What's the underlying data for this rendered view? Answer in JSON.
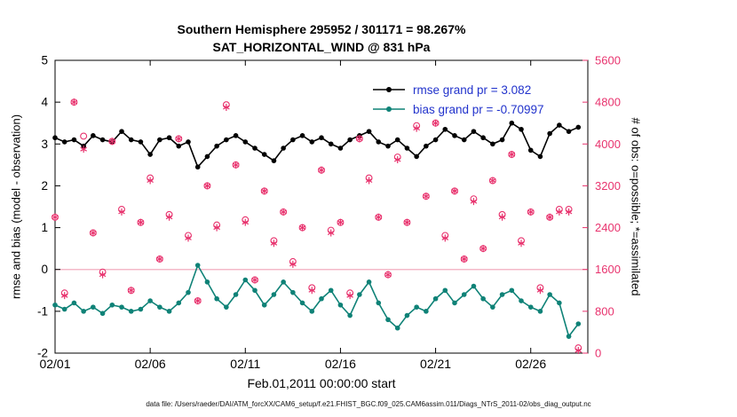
{
  "title": {
    "line1": "Southern Hemisphere 295952 / 301171 = 98.267%",
    "line2": "SAT_HORIZONTAL_WIND @ 831 hPa"
  },
  "axes": {
    "left_label": "rmse and bias (model - observation)",
    "right_label": "# of obs: o=possible; *=assimilated",
    "x_label": "Feb.01,2011 00:00:00 start"
  },
  "caption": "data file: /Users/raeder/DAI/ATM_forcXX/CAM6_setup/f.e21.FHIST_BGC.f09_025.CAM6assim.011/Diags_NTrS_2011-02/obs_diag_output.nc",
  "colors": {
    "rmse": "#000000",
    "bias": "#0f8277",
    "obs": "#e8336e",
    "legend_text": "#2233cc",
    "zero_line": "#f4b9c8",
    "axis": "#000000",
    "right_axis": "#e8336e"
  },
  "chart_data": {
    "type": "line",
    "title": "Southern Hemisphere 295952 / 301171 = 98.267%",
    "subtitle": "SAT_HORIZONTAL_WIND @ 831 hPa",
    "xlabel": "Feb.01,2011 00:00:00 start",
    "ylabel_left": "rmse and bias (model - observation)",
    "ylabel_right": "# of obs: o=possible; *=assimilated",
    "xlim": [
      1,
      29
    ],
    "ylim_left": [
      -2,
      5
    ],
    "ylim_right": [
      0,
      5600
    ],
    "grid": false,
    "legend_position": "top-right-inside",
    "xticks": [
      {
        "value": 1,
        "label": "02/01"
      },
      {
        "value": 6,
        "label": "02/06"
      },
      {
        "value": 11,
        "label": "02/11"
      },
      {
        "value": 16,
        "label": "02/16"
      },
      {
        "value": 21,
        "label": "02/21"
      },
      {
        "value": 26,
        "label": "02/26"
      }
    ],
    "yticks_left": [
      -2,
      -1,
      0,
      1,
      2,
      3,
      4,
      5
    ],
    "yticks_right": [
      0,
      800,
      1600,
      2400,
      3200,
      4000,
      4800,
      5600
    ],
    "legend": [
      {
        "name": "rmse",
        "label": "rmse grand pr = 3.082",
        "color": "#000000"
      },
      {
        "name": "bias",
        "label": "bias grand pr = -0.70997",
        "color": "#0f8277"
      }
    ],
    "x": [
      1,
      1.5,
      2,
      2.5,
      3,
      3.5,
      4,
      4.5,
      5,
      5.5,
      6,
      6.5,
      7,
      7.5,
      8,
      8.5,
      9,
      9.5,
      10,
      10.5,
      11,
      11.5,
      12,
      12.5,
      13,
      13.5,
      14,
      14.5,
      15,
      15.5,
      16,
      16.5,
      17,
      17.5,
      18,
      18.5,
      19,
      19.5,
      20,
      20.5,
      21,
      21.5,
      22,
      22.5,
      23,
      23.5,
      24,
      24.5,
      25,
      25.5,
      26,
      26.5,
      27,
      27.5,
      28,
      28.5
    ],
    "series": [
      {
        "name": "rmse",
        "axis": "left",
        "marker": "dot",
        "color": "#000000",
        "values": [
          3.15,
          3.05,
          3.1,
          2.95,
          3.2,
          3.1,
          3.05,
          3.3,
          3.1,
          3.05,
          2.75,
          3.1,
          3.15,
          2.95,
          3.05,
          2.45,
          2.7,
          2.95,
          3.1,
          3.2,
          3.05,
          2.9,
          2.75,
          2.6,
          2.9,
          3.1,
          3.2,
          3.05,
          3.15,
          3.0,
          2.9,
          3.1,
          3.2,
          3.3,
          3.05,
          2.95,
          3.1,
          2.9,
          2.7,
          2.95,
          3.1,
          3.35,
          3.2,
          3.1,
          3.3,
          3.15,
          3.0,
          3.1,
          3.5,
          3.35,
          2.85,
          2.7,
          3.25,
          3.45,
          3.3,
          3.4
        ]
      },
      {
        "name": "bias",
        "axis": "left",
        "marker": "dot",
        "color": "#0f8277",
        "values": [
          -0.85,
          -0.95,
          -0.8,
          -1.0,
          -0.9,
          -1.05,
          -0.85,
          -0.9,
          -1.0,
          -0.95,
          -0.75,
          -0.9,
          -1.0,
          -0.8,
          -0.55,
          0.1,
          -0.3,
          -0.7,
          -0.9,
          -0.6,
          -0.25,
          -0.5,
          -0.85,
          -0.6,
          -0.3,
          -0.55,
          -0.8,
          -1.0,
          -0.7,
          -0.5,
          -0.85,
          -1.1,
          -0.6,
          -0.3,
          -0.8,
          -1.2,
          -1.4,
          -1.1,
          -0.9,
          -1.0,
          -0.7,
          -0.5,
          -0.8,
          -0.6,
          -0.4,
          -0.7,
          -0.9,
          -0.6,
          -0.5,
          -0.75,
          -0.9,
          -1.0,
          -0.6,
          -0.8,
          -1.6,
          -1.3
        ]
      },
      {
        "name": "obs_possible",
        "axis": "right",
        "marker": "o",
        "color": "#e8336e",
        "values": [
          2600,
          1150,
          4800,
          4150,
          2300,
          1550,
          4050,
          2750,
          1200,
          2500,
          3350,
          1800,
          2650,
          4100,
          2250,
          1000,
          3200,
          2450,
          4750,
          3600,
          2550,
          1400,
          3100,
          2150,
          2700,
          1750,
          2400,
          1250,
          3500,
          2350,
          2500,
          1150,
          4100,
          3350,
          2600,
          1500,
          3750,
          2500,
          4350,
          3000,
          4400,
          2250,
          3100,
          1800,
          2950,
          2000,
          3300,
          2650,
          3800,
          2150,
          2700,
          1250,
          2600,
          2750,
          2750,
          100
        ]
      },
      {
        "name": "obs_assimilated",
        "axis": "right",
        "marker": "*",
        "color": "#e8336e",
        "values": [
          2600,
          1100,
          4800,
          3900,
          2300,
          1500,
          4050,
          2700,
          1200,
          2500,
          3300,
          1800,
          2600,
          4100,
          2200,
          1000,
          3200,
          2400,
          4700,
          3600,
          2500,
          1400,
          3100,
          2100,
          2700,
          1700,
          2400,
          1200,
          3500,
          2300,
          2500,
          1100,
          4100,
          3300,
          2600,
          1500,
          3700,
          2500,
          4300,
          3000,
          4400,
          2200,
          3100,
          1800,
          2900,
          2000,
          3300,
          2600,
          3800,
          2100,
          2700,
          1200,
          2600,
          2700,
          2700,
          50
        ]
      }
    ]
  }
}
